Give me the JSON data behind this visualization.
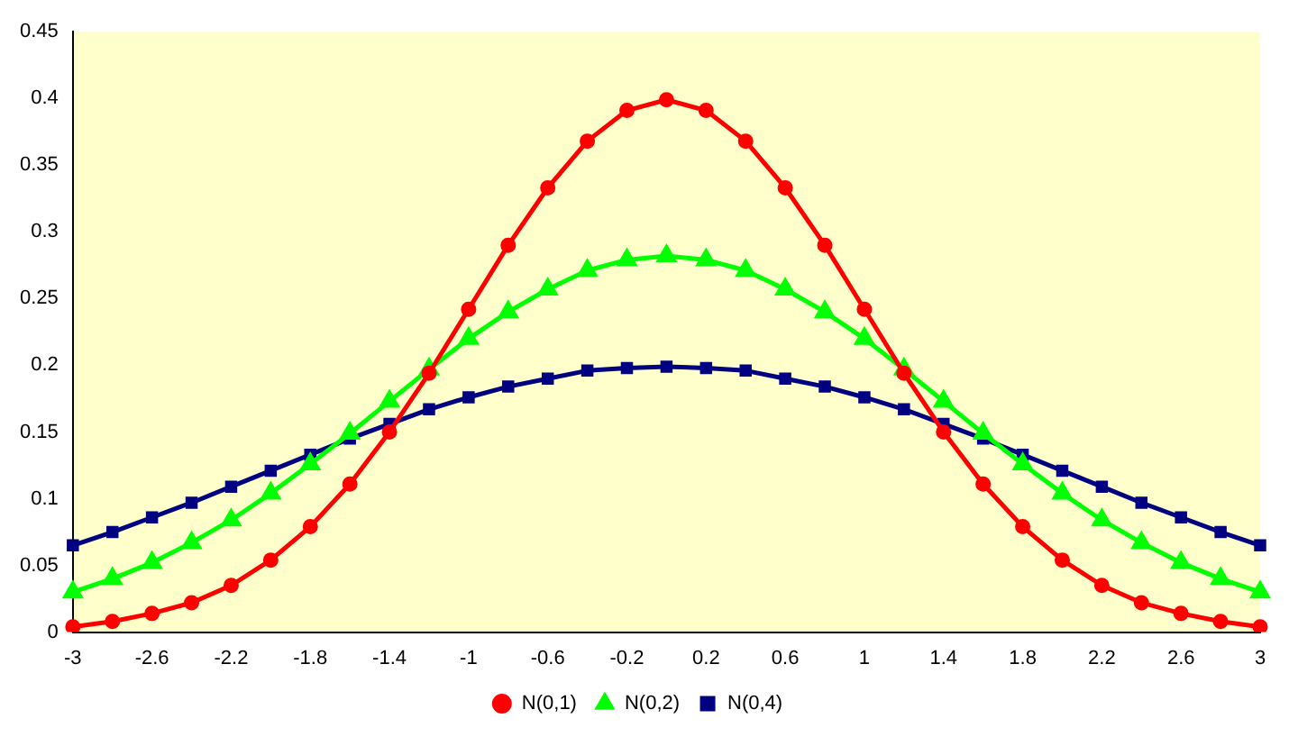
{
  "chart_data": {
    "type": "line",
    "categories": [
      "-3",
      null,
      "-2.6",
      null,
      "-2.2",
      null,
      "-1.8",
      null,
      "-1.4",
      null,
      "-1",
      null,
      "-0.6",
      null,
      "-0.2",
      null,
      "0.2",
      null,
      "0.6",
      null,
      "1",
      null,
      "1.4",
      null,
      "1.8",
      null,
      "2.2",
      null,
      "2.6",
      null,
      "3"
    ],
    "series": [
      {
        "name": "N(0,1)",
        "color": "#ff0000",
        "marker": "circle",
        "values": [
          0.004,
          0.008,
          0.014,
          0.022,
          0.035,
          0.054,
          0.079,
          0.111,
          0.15,
          0.194,
          0.242,
          0.29,
          0.333,
          0.368,
          0.391,
          0.399,
          0.391,
          0.368,
          0.333,
          0.29,
          0.242,
          0.194,
          0.15,
          0.111,
          0.079,
          0.054,
          0.035,
          0.022,
          0.014,
          0.008,
          0.004
        ]
      },
      {
        "name": "N(0,2)",
        "color": "#00ff00",
        "marker": "triangle",
        "values": [
          0.03,
          0.04,
          0.052,
          0.067,
          0.084,
          0.104,
          0.126,
          0.149,
          0.173,
          0.197,
          0.22,
          0.24,
          0.257,
          0.271,
          0.279,
          0.282,
          0.279,
          0.271,
          0.257,
          0.24,
          0.22,
          0.197,
          0.173,
          0.149,
          0.126,
          0.104,
          0.084,
          0.067,
          0.052,
          0.04,
          0.03
        ]
      },
      {
        "name": "N(0,4)",
        "color": "#000080",
        "marker": "square",
        "values": [
          0.065,
          0.075,
          0.086,
          0.097,
          0.109,
          0.121,
          0.133,
          0.145,
          0.156,
          0.167,
          0.176,
          0.184,
          0.19,
          0.196,
          0.198,
          0.199,
          0.198,
          0.196,
          0.19,
          0.184,
          0.176,
          0.167,
          0.156,
          0.145,
          0.133,
          0.121,
          0.109,
          0.097,
          0.086,
          0.075,
          0.065
        ]
      }
    ],
    "ylim": [
      0,
      0.45
    ],
    "yticks": [
      0,
      0.05,
      0.1,
      0.15,
      0.2,
      0.25,
      0.3,
      0.35,
      0.4,
      0.45
    ],
    "grid": false,
    "legend": "bottom"
  }
}
